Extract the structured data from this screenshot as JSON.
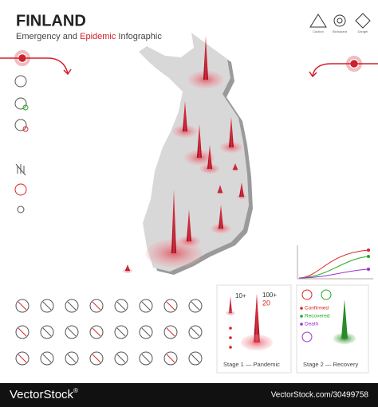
{
  "header": {
    "title": "FINLAND",
    "subtitle_parts": [
      "Emergency and ",
      "Epidemic",
      " Infographic"
    ]
  },
  "hazard_icons": [
    "Caution",
    "Biohazard",
    "Danger"
  ],
  "legend": {
    "stage1": {
      "small": "10+",
      "large": "100+",
      "count": "20",
      "label": "Stage 1 — Pandemic"
    },
    "stage2": {
      "label": "Stage 2 — Recovery",
      "items": [
        "Confirmed",
        "Recovered",
        "Death"
      ]
    }
  },
  "footer": {
    "brand": "VectorStock",
    "reg": "®",
    "url": "VectorStock.com/30499758"
  }
}
